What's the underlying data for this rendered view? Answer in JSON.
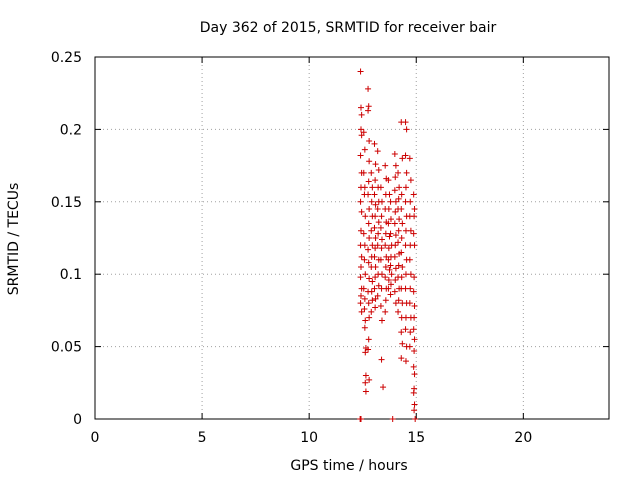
{
  "chart_data": {
    "type": "scatter",
    "title": "Day 362 of 2015, SRMTID for receiver bair",
    "xlabel": "GPS time / hours",
    "ylabel": "SRMTID / TECUs",
    "xlim": [
      0,
      24
    ],
    "ylim": [
      0,
      0.25
    ],
    "xticks": [
      0,
      5,
      10,
      15,
      20
    ],
    "xtick_labels": [
      "0",
      "5",
      "10",
      "15",
      "20"
    ],
    "yticks": [
      0,
      0.05,
      0.1,
      0.15,
      0.2,
      0.25
    ],
    "ytick_labels": [
      "0",
      "0.05",
      "0.1",
      "0.15",
      "0.2",
      "0.25"
    ],
    "grid": true,
    "marker": "+",
    "marker_color": "#cc0000",
    "series": [
      {
        "points": [
          [
            12.38,
            0.0
          ],
          [
            12.42,
            0.0
          ],
          [
            13.9,
            0.0
          ],
          [
            14.95,
            0.0
          ],
          [
            12.4,
            0.24
          ],
          [
            12.42,
            0.215
          ],
          [
            12.45,
            0.21
          ],
          [
            12.42,
            0.2
          ],
          [
            12.45,
            0.196
          ],
          [
            12.4,
            0.182
          ],
          [
            12.45,
            0.17
          ],
          [
            12.42,
            0.16
          ],
          [
            12.4,
            0.15
          ],
          [
            12.45,
            0.143
          ],
          [
            12.42,
            0.13
          ],
          [
            12.4,
            0.12
          ],
          [
            12.45,
            0.112
          ],
          [
            12.42,
            0.105
          ],
          [
            12.4,
            0.098
          ],
          [
            12.45,
            0.09
          ],
          [
            12.42,
            0.085
          ],
          [
            12.4,
            0.08
          ],
          [
            12.45,
            0.074
          ],
          [
            12.55,
            0.198
          ],
          [
            12.6,
            0.186
          ],
          [
            12.55,
            0.17
          ],
          [
            12.6,
            0.16
          ],
          [
            12.58,
            0.155
          ],
          [
            12.62,
            0.14
          ],
          [
            12.55,
            0.128
          ],
          [
            12.6,
            0.12
          ],
          [
            12.58,
            0.11
          ],
          [
            12.62,
            0.1
          ],
          [
            12.55,
            0.09
          ],
          [
            12.6,
            0.083
          ],
          [
            12.58,
            0.076
          ],
          [
            12.62,
            0.068
          ],
          [
            12.6,
            0.063
          ],
          [
            12.65,
            0.049
          ],
          [
            12.62,
            0.046
          ],
          [
            12.65,
            0.03
          ],
          [
            12.62,
            0.025
          ],
          [
            12.65,
            0.019
          ],
          [
            12.75,
            0.228
          ],
          [
            12.78,
            0.216
          ],
          [
            12.75,
            0.213
          ],
          [
            12.8,
            0.192
          ],
          [
            12.8,
            0.178
          ],
          [
            12.78,
            0.164
          ],
          [
            12.75,
            0.155
          ],
          [
            12.8,
            0.145
          ],
          [
            12.78,
            0.135
          ],
          [
            12.8,
            0.125
          ],
          [
            12.75,
            0.117
          ],
          [
            12.78,
            0.108
          ],
          [
            12.8,
            0.097
          ],
          [
            12.75,
            0.088
          ],
          [
            12.78,
            0.08
          ],
          [
            12.8,
            0.07
          ],
          [
            12.78,
            0.055
          ],
          [
            12.75,
            0.048
          ],
          [
            12.8,
            0.027
          ],
          [
            12.9,
            0.17
          ],
          [
            12.95,
            0.16
          ],
          [
            12.92,
            0.15
          ],
          [
            12.95,
            0.14
          ],
          [
            12.9,
            0.13
          ],
          [
            12.95,
            0.12
          ],
          [
            12.92,
            0.112
          ],
          [
            12.9,
            0.105
          ],
          [
            12.95,
            0.095
          ],
          [
            12.92,
            0.088
          ],
          [
            12.95,
            0.082
          ],
          [
            12.9,
            0.074
          ],
          [
            13.05,
            0.19
          ],
          [
            13.1,
            0.176
          ],
          [
            13.08,
            0.165
          ],
          [
            13.05,
            0.155
          ],
          [
            13.1,
            0.148
          ],
          [
            13.08,
            0.14
          ],
          [
            13.05,
            0.132
          ],
          [
            13.1,
            0.125
          ],
          [
            13.08,
            0.118
          ],
          [
            13.05,
            0.112
          ],
          [
            13.1,
            0.105
          ],
          [
            13.08,
            0.098
          ],
          [
            13.05,
            0.09
          ],
          [
            13.1,
            0.083
          ],
          [
            13.08,
            0.077
          ],
          [
            13.2,
            0.185
          ],
          [
            13.25,
            0.172
          ],
          [
            13.22,
            0.16
          ],
          [
            13.25,
            0.15
          ],
          [
            13.2,
            0.145
          ],
          [
            13.25,
            0.136
          ],
          [
            13.22,
            0.128
          ],
          [
            13.2,
            0.12
          ],
          [
            13.25,
            0.11
          ],
          [
            13.22,
            0.1
          ],
          [
            13.25,
            0.092
          ],
          [
            13.2,
            0.085
          ],
          [
            13.35,
            0.16
          ],
          [
            13.4,
            0.15
          ],
          [
            13.38,
            0.14
          ],
          [
            13.35,
            0.132
          ],
          [
            13.4,
            0.124
          ],
          [
            13.38,
            0.118
          ],
          [
            13.35,
            0.11
          ],
          [
            13.4,
            0.1
          ],
          [
            13.38,
            0.09
          ],
          [
            13.35,
            0.078
          ],
          [
            13.4,
            0.068
          ],
          [
            13.38,
            0.041
          ],
          [
            13.45,
            0.022
          ],
          [
            13.55,
            0.175
          ],
          [
            13.6,
            0.166
          ],
          [
            13.58,
            0.155
          ],
          [
            13.55,
            0.145
          ],
          [
            13.6,
            0.136
          ],
          [
            13.58,
            0.128
          ],
          [
            13.55,
            0.12
          ],
          [
            13.6,
            0.112
          ],
          [
            13.58,
            0.105
          ],
          [
            13.55,
            0.098
          ],
          [
            13.6,
            0.09
          ],
          [
            13.58,
            0.082
          ],
          [
            13.55,
            0.074
          ],
          [
            13.7,
            0.165
          ],
          [
            13.75,
            0.155
          ],
          [
            13.72,
            0.145
          ],
          [
            13.7,
            0.135
          ],
          [
            13.75,
            0.126
          ],
          [
            13.72,
            0.118
          ],
          [
            13.7,
            0.11
          ],
          [
            13.75,
            0.103
          ],
          [
            13.72,
            0.096
          ],
          [
            13.7,
            0.09
          ],
          [
            13.8,
            0.15
          ],
          [
            13.82,
            0.138
          ],
          [
            13.8,
            0.128
          ],
          [
            13.85,
            0.12
          ],
          [
            13.82,
            0.112
          ],
          [
            13.8,
            0.106
          ],
          [
            13.85,
            0.1
          ],
          [
            13.82,
            0.093
          ],
          [
            13.8,
            0.086
          ],
          [
            14.0,
            0.183
          ],
          [
            14.05,
            0.175
          ],
          [
            14.02,
            0.167
          ],
          [
            14.0,
            0.158
          ],
          [
            14.05,
            0.15
          ],
          [
            14.02,
            0.143
          ],
          [
            14.0,
            0.135
          ],
          [
            14.05,
            0.127
          ],
          [
            14.02,
            0.12
          ],
          [
            14.0,
            0.112
          ],
          [
            14.05,
            0.104
          ],
          [
            14.02,
            0.096
          ],
          [
            14.0,
            0.088
          ],
          [
            14.05,
            0.08
          ],
          [
            14.15,
            0.17
          ],
          [
            14.2,
            0.16
          ],
          [
            14.18,
            0.152
          ],
          [
            14.15,
            0.145
          ],
          [
            14.2,
            0.138
          ],
          [
            14.18,
            0.13
          ],
          [
            14.15,
            0.122
          ],
          [
            14.2,
            0.114
          ],
          [
            14.18,
            0.106
          ],
          [
            14.15,
            0.098
          ],
          [
            14.2,
            0.09
          ],
          [
            14.18,
            0.082
          ],
          [
            14.15,
            0.074
          ],
          [
            14.3,
            0.205
          ],
          [
            14.35,
            0.18
          ],
          [
            14.32,
            0.155
          ],
          [
            14.3,
            0.145
          ],
          [
            14.35,
            0.135
          ],
          [
            14.32,
            0.125
          ],
          [
            14.3,
            0.115
          ],
          [
            14.35,
            0.105
          ],
          [
            14.32,
            0.098
          ],
          [
            14.3,
            0.09
          ],
          [
            14.35,
            0.08
          ],
          [
            14.32,
            0.07
          ],
          [
            14.3,
            0.06
          ],
          [
            14.35,
            0.052
          ],
          [
            14.3,
            0.042
          ],
          [
            14.5,
            0.205
          ],
          [
            14.55,
            0.2
          ],
          [
            14.5,
            0.182
          ],
          [
            14.55,
            0.17
          ],
          [
            14.52,
            0.16
          ],
          [
            14.5,
            0.15
          ],
          [
            14.55,
            0.14
          ],
          [
            14.52,
            0.13
          ],
          [
            14.5,
            0.12
          ],
          [
            14.55,
            0.11
          ],
          [
            14.52,
            0.1
          ],
          [
            14.5,
            0.09
          ],
          [
            14.55,
            0.08
          ],
          [
            14.52,
            0.07
          ],
          [
            14.5,
            0.062
          ],
          [
            14.55,
            0.05
          ],
          [
            14.52,
            0.04
          ],
          [
            14.7,
            0.18
          ],
          [
            14.75,
            0.165
          ],
          [
            14.72,
            0.15
          ],
          [
            14.7,
            0.14
          ],
          [
            14.75,
            0.13
          ],
          [
            14.72,
            0.12
          ],
          [
            14.7,
            0.11
          ],
          [
            14.75,
            0.1
          ],
          [
            14.72,
            0.09
          ],
          [
            14.7,
            0.08
          ],
          [
            14.75,
            0.07
          ],
          [
            14.72,
            0.06
          ],
          [
            14.7,
            0.05
          ],
          [
            14.88,
            0.155
          ],
          [
            14.92,
            0.145
          ],
          [
            14.9,
            0.14
          ],
          [
            14.88,
            0.128
          ],
          [
            14.92,
            0.12
          ],
          [
            14.9,
            0.098
          ],
          [
            14.88,
            0.088
          ],
          [
            14.92,
            0.078
          ],
          [
            14.9,
            0.07
          ],
          [
            14.88,
            0.062
          ],
          [
            14.92,
            0.055
          ],
          [
            14.9,
            0.047
          ],
          [
            14.88,
            0.036
          ],
          [
            14.92,
            0.031
          ],
          [
            14.9,
            0.021
          ],
          [
            14.88,
            0.018
          ],
          [
            14.92,
            0.01
          ],
          [
            14.9,
            0.006
          ]
        ]
      }
    ]
  }
}
